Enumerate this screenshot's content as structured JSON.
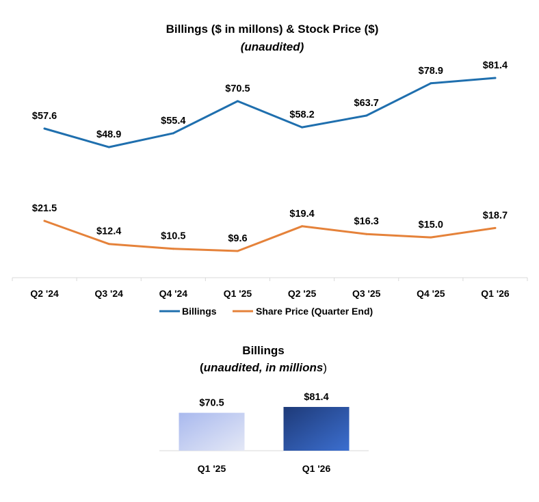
{
  "colors": {
    "billings": "#1f6fae",
    "share_price": "#e5823a",
    "axis": "#d9d9d9",
    "bar_q125_start": "#a9b9ee",
    "bar_q125_end": "#e4e8f6",
    "bar_q126_start": "#1e3a78",
    "bar_q126_end": "#3c6fd0"
  },
  "chart_data": [
    {
      "type": "line",
      "title": "Billings ($ in millons) & Stock Price ($)",
      "subtitle": "(unaudited)",
      "categories": [
        "Q2 '24",
        "Q3 '24",
        "Q4 '24",
        "Q1 '25",
        "Q2 '25",
        "Q3 '25",
        "Q4 '25",
        "Q1 '26"
      ],
      "series": [
        {
          "name": "Billings",
          "values": [
            57.6,
            48.9,
            55.4,
            70.5,
            58.2,
            63.7,
            78.9,
            81.4
          ],
          "labels": [
            "$57.6",
            "$48.9",
            "$55.4",
            "$70.5",
            "$58.2",
            "$63.7",
            "$78.9",
            "$81.4"
          ]
        },
        {
          "name": "Share Price (Quarter End)",
          "values": [
            21.5,
            12.4,
            10.5,
            9.6,
            19.4,
            16.3,
            15.0,
            18.7
          ],
          "labels": [
            "$21.5",
            "$12.4",
            "$10.5",
            "$9.6",
            "$19.4",
            "$16.3",
            "$15.0",
            "$18.7"
          ]
        }
      ],
      "legend_position": "bottom",
      "grid": false
    },
    {
      "type": "bar",
      "title": "Billings",
      "subtitle_open": "(",
      "subtitle_body": "unaudited, in millions",
      "subtitle_close": ")",
      "categories": [
        "Q1 '25",
        "Q1 '26"
      ],
      "values": [
        70.5,
        81.4
      ],
      "labels": [
        "$70.5",
        "$81.4"
      ],
      "grid": false
    }
  ]
}
